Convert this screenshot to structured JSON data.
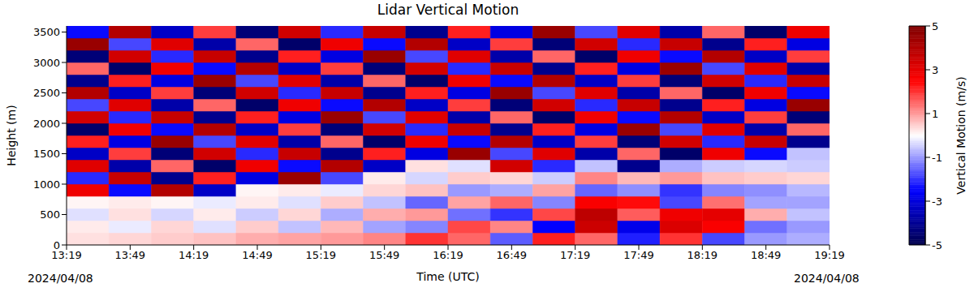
{
  "chart_data": {
    "type": "heatmap",
    "title": "Lidar Vertical Motion",
    "x_label": "Time (UTC)",
    "y_label": "Height (m)",
    "annotations": [
      "2024/04/08",
      "2024/04/08"
    ],
    "grid": false,
    "xlim": [
      799,
      1159
    ],
    "xticks": [
      {
        "value": 799,
        "label": "13:19"
      },
      {
        "value": 829,
        "label": "13:49"
      },
      {
        "value": 859,
        "label": "14:19"
      },
      {
        "value": 889,
        "label": "14:49"
      },
      {
        "value": 919,
        "label": "15:19"
      },
      {
        "value": 949,
        "label": "15:49"
      },
      {
        "value": 979,
        "label": "16:19"
      },
      {
        "value": 1009,
        "label": "16:49"
      },
      {
        "value": 1039,
        "label": "17:19"
      },
      {
        "value": 1069,
        "label": "17:49"
      },
      {
        "value": 1099,
        "label": "18:19"
      },
      {
        "value": 1129,
        "label": "18:49"
      },
      {
        "value": 1159,
        "label": "19:19"
      }
    ],
    "ylim": [
      0,
      3600
    ],
    "yticks": [
      0,
      500,
      1000,
      1500,
      2000,
      2500,
      3000,
      3500
    ],
    "x_edges": [
      799,
      819,
      839,
      859,
      879,
      899,
      919,
      939,
      959,
      979,
      999,
      1019,
      1039,
      1059,
      1079,
      1099,
      1119,
      1139,
      1159
    ],
    "y_edges": [
      0,
      200,
      400,
      600,
      800,
      1000,
      1200,
      1400,
      1600,
      1800,
      2000,
      2200,
      2400,
      2600,
      2800,
      3000,
      3200,
      3400,
      3600
    ],
    "cells": [
      [
        0.3,
        0.4,
        0.5,
        0.6,
        0.8,
        0.9,
        1.0,
        1.2,
        2.0,
        1.5,
        -1.6,
        2.2,
        1.5,
        -2.2,
        2.0,
        -1.8,
        -1.0,
        -0.8
      ],
      [
        0.2,
        -0.2,
        0.4,
        -0.3,
        0.5,
        -0.6,
        0.7,
        -0.9,
        -1.2,
        1.8,
        1.2,
        -2.5,
        3.5,
        -2.8,
        3.2,
        2.6,
        -1.4,
        -1.0
      ],
      [
        -0.3,
        0.3,
        -0.4,
        0.2,
        -0.5,
        0.4,
        -0.8,
        0.8,
        1.0,
        -1.4,
        -2.0,
        1.8,
        3.8,
        1.6,
        2.8,
        3.0,
        0.8,
        -0.6
      ],
      [
        0.1,
        0.2,
        0.1,
        -0.2,
        0.2,
        -0.3,
        0.5,
        -0.6,
        -1.5,
        0.9,
        1.5,
        -1.2,
        2.6,
        2.4,
        -1.8,
        1.4,
        -0.9,
        -0.9
      ],
      [
        2.8,
        -2.4,
        4.0,
        -3.3,
        0.1,
        0.2,
        -0.2,
        0.4,
        0.6,
        -1.0,
        -0.8,
        0.9,
        -1.5,
        -1.1,
        -2.0,
        -1.2,
        -1.1,
        -0.7
      ],
      [
        -2.1,
        3.6,
        -4.1,
        2.2,
        -2.9,
        4.5,
        -1.8,
        0.2,
        -0.4,
        0.5,
        0.4,
        -0.5,
        1.2,
        0.7,
        1.0,
        0.6,
        0.5,
        0.4
      ],
      [
        3.1,
        -3.7,
        1.5,
        -4.6,
        2.8,
        -2.4,
        4.0,
        -3.3,
        0.3,
        -0.3,
        3.4,
        -2.1,
        -0.6,
        -4.1,
        -0.8,
        -0.5,
        -0.4,
        -0.5
      ],
      [
        -3.3,
        1.9,
        -4.4,
        3.4,
        -2.1,
        3.6,
        -4.1,
        2.2,
        -2.9,
        4.5,
        -1.8,
        3.1,
        -3.7,
        1.5,
        -4.6,
        2.8,
        -2.4,
        -0.6
      ],
      [
        2.2,
        -2.9,
        4.5,
        -1.8,
        3.1,
        -3.7,
        1.5,
        -4.6,
        2.8,
        -2.4,
        4.0,
        -3.3,
        1.9,
        -4.4,
        3.4,
        -2.1,
        3.6,
        -4.1
      ],
      [
        -4.6,
        2.8,
        -2.4,
        4.0,
        -3.3,
        1.9,
        -4.4,
        3.4,
        -2.1,
        3.6,
        -4.1,
        2.2,
        -2.9,
        4.5,
        -1.8,
        3.1,
        -3.7,
        1.5
      ],
      [
        3.4,
        -2.1,
        3.6,
        -4.1,
        2.2,
        -2.9,
        4.5,
        -1.8,
        3.1,
        -3.7,
        1.5,
        -4.6,
        2.8,
        -2.4,
        4.0,
        -3.3,
        1.9,
        -4.4
      ],
      [
        -1.8,
        3.1,
        -3.7,
        1.5,
        -4.6,
        2.8,
        -2.4,
        4.0,
        -3.3,
        1.9,
        -4.4,
        3.4,
        -2.1,
        3.6,
        -4.1,
        2.2,
        -2.9,
        4.5
      ],
      [
        4.0,
        -3.3,
        1.9,
        -4.4,
        3.4,
        -2.1,
        3.6,
        -4.1,
        2.2,
        -2.9,
        4.5,
        -1.8,
        3.1,
        -3.7,
        1.5,
        -4.6,
        2.8,
        -2.4
      ],
      [
        -4.1,
        2.2,
        -2.9,
        4.5,
        -1.8,
        3.1,
        -3.7,
        1.5,
        -4.6,
        2.8,
        -2.4,
        4.0,
        -3.3,
        1.9,
        -4.4,
        3.4,
        -2.1,
        3.6
      ],
      [
        1.5,
        -4.6,
        2.8,
        -2.4,
        4.0,
        -3.3,
        1.9,
        -4.4,
        3.4,
        -2.1,
        3.6,
        -4.1,
        2.2,
        -2.9,
        4.5,
        -1.8,
        3.1,
        -3.7
      ],
      [
        -4.4,
        3.4,
        -2.1,
        3.6,
        -4.1,
        2.2,
        -2.9,
        4.5,
        -1.8,
        3.1,
        -3.7,
        1.5,
        -4.6,
        2.8,
        -2.4,
        4.0,
        -3.3,
        1.9
      ],
      [
        4.5,
        -1.8,
        3.1,
        -3.7,
        1.5,
        -4.6,
        2.8,
        -2.4,
        4.0,
        -3.3,
        1.9,
        -4.4,
        3.4,
        -2.1,
        3.6,
        -4.1,
        2.2,
        -2.9
      ],
      [
        -2.4,
        4.0,
        -3.3,
        1.9,
        -4.4,
        3.4,
        -2.1,
        3.6,
        -4.1,
        2.2,
        -2.9,
        4.5,
        -1.8,
        3.1,
        -3.7,
        1.5,
        -4.6,
        2.8
      ]
    ],
    "colorbar": {
      "label": "Vertical Motion (m/s)",
      "range": [
        -5,
        5
      ],
      "ticks": [
        -5,
        -3,
        -1,
        1,
        3,
        5
      ]
    }
  }
}
